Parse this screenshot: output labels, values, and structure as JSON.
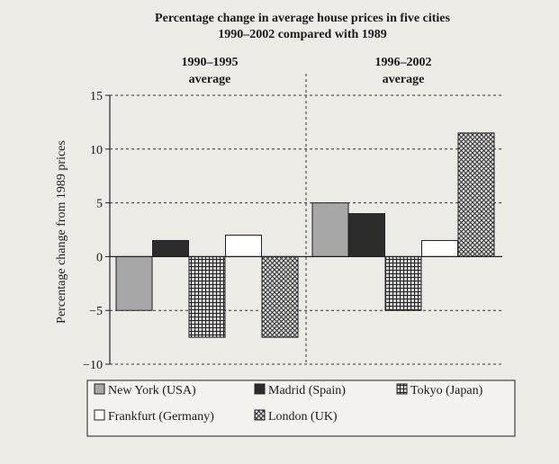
{
  "chart_data": {
    "type": "bar",
    "title": "Percentage change in average house prices in five cities",
    "subtitle": "1990–2002 compared with 1989",
    "ylabel": "Percentage change from 1989 prices",
    "ylim": [
      -10,
      15
    ],
    "yticks": [
      15,
      10,
      5,
      0,
      -5,
      -10
    ],
    "grid": true,
    "legend_position": "bottom",
    "groups": [
      {
        "label_line1": "1990–1995",
        "label_line2": "average"
      },
      {
        "label_line1": "1996–2002",
        "label_line2": "average"
      }
    ],
    "series": [
      {
        "name": "New York (USA)",
        "values": [
          -5,
          5
        ],
        "color": "#a7a7a7",
        "pattern": "solid"
      },
      {
        "name": "Madrid (Spain)",
        "values": [
          1.5,
          4
        ],
        "color": "#2c2c2c",
        "pattern": "solid"
      },
      {
        "name": "Tokyo (Japan)",
        "values": [
          -7.5,
          -5
        ],
        "color": "#444444",
        "pattern": "grid"
      },
      {
        "name": "Frankfurt (Germany)",
        "values": [
          2,
          1.5
        ],
        "color": "#ffffff",
        "pattern": "solid"
      },
      {
        "name": "London (UK)",
        "values": [
          -7.5,
          11.5
        ],
        "color": "#6a6a6a",
        "pattern": "crosshatch"
      }
    ]
  }
}
